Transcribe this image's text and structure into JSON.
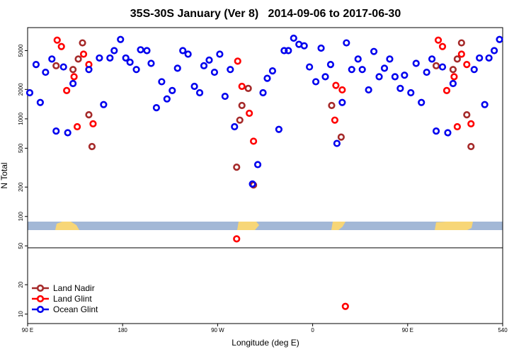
{
  "chart_data": {
    "type": "scatter",
    "title": "35S-30S January (Ver 8)   2014-09-06 to 2017-06-30",
    "x_label": "Longitude (deg E)",
    "y_label": "N Total",
    "xlim": [
      90,
      540
    ],
    "ylim": [
      8,
      8600
    ],
    "log_y": true,
    "xticks": [
      {
        "value": 90,
        "label": "90 E"
      },
      180,
      {
        "value": 270,
        "label": "90 W"
      },
      {
        "value": 360,
        "label": "0"
      },
      {
        "value": 450,
        "label": "90 E"
      },
      540
    ],
    "yticks": [
      10,
      20,
      50,
      100,
      200,
      500,
      1000,
      2000,
      5000
    ],
    "legend": "bottom-left",
    "series": [
      {
        "name": "Land Nadir",
        "color": "#a52a2a",
        "x": [
          117,
          133,
          138,
          142,
          148,
          151,
          288,
          291,
          293,
          299,
          304,
          378,
          387,
          477,
          493,
          497,
          501,
          506,
          510
        ],
        "values": [
          3500,
          3200,
          4100,
          6000,
          1100,
          520,
          320,
          970,
          1370,
          2050,
          210,
          1370,
          650,
          3500,
          3200,
          4100,
          6000,
          1100,
          520
        ]
      },
      {
        "name": "Land Glint",
        "color": "#ff0000",
        "x": [
          118,
          122,
          127,
          134,
          137,
          143,
          148,
          152,
          289,
          293,
          300,
          304,
          288,
          381,
          382,
          388,
          391,
          479,
          483,
          487,
          494,
          497,
          501,
          506,
          510
        ],
        "values": [
          6400,
          5500,
          1950,
          2700,
          830,
          4600,
          3600,
          890,
          3900,
          2150,
          1140,
          590,
          59,
          970,
          2200,
          1980,
          12,
          6400,
          5500,
          1950,
          2700,
          830,
          4600,
          3600,
          890
        ]
      },
      {
        "name": "Ocean Glint",
        "color": "#0000ee",
        "x": [
          92,
          98,
          102,
          107,
          113,
          117,
          124,
          128,
          133,
          148,
          158,
          162,
          168,
          172,
          178,
          183,
          187,
          193,
          197,
          203,
          207,
          212,
          217,
          222,
          227,
          232,
          237,
          242,
          248,
          253,
          257,
          262,
          267,
          272,
          277,
          282,
          286,
          303,
          308,
          313,
          317,
          322,
          328,
          333,
          337,
          342,
          347,
          352,
          357,
          363,
          368,
          372,
          377,
          383,
          388,
          392,
          397,
          403,
          407,
          413,
          418,
          423,
          428,
          433,
          438,
          443,
          447,
          453,
          458,
          463,
          468,
          473,
          477,
          483,
          488,
          493,
          513,
          518,
          523,
          527,
          532,
          537
        ],
        "values": [
          1850,
          3600,
          1470,
          3000,
          4100,
          750,
          3400,
          720,
          2300,
          3200,
          4200,
          1400,
          4200,
          5000,
          6500,
          4200,
          3800,
          3200,
          5100,
          5000,
          3700,
          1300,
          2400,
          1600,
          1950,
          3300,
          5000,
          4600,
          2150,
          1850,
          3500,
          4000,
          3000,
          4600,
          1700,
          3200,
          830,
          215,
          340,
          1850,
          2600,
          3100,
          780,
          5000,
          5000,
          6700,
          5800,
          5600,
          3400,
          2400,
          5300,
          2700,
          3600,
          560,
          1470,
          6000,
          3200,
          4100,
          3200,
          1980,
          4900,
          2700,
          3300,
          4100,
          2700,
          2050,
          2800,
          1850,
          3700,
          1470,
          3000,
          4100,
          750,
          3400,
          720,
          2300,
          3200,
          4200,
          1400,
          4200,
          5000,
          6500
        ]
      }
    ]
  }
}
